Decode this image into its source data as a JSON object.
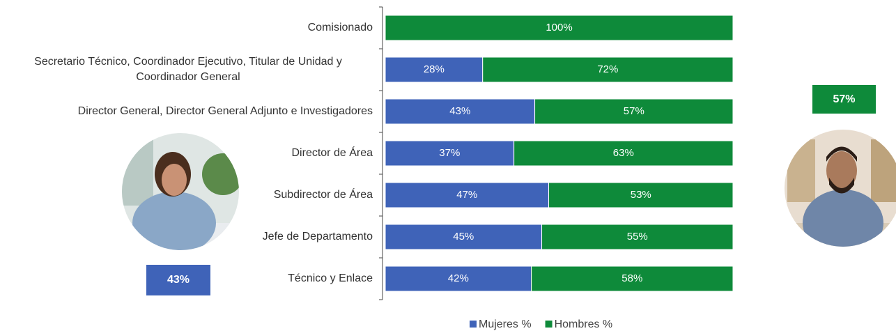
{
  "chart_data": {
    "type": "stacked-bar-horizontal",
    "categories": [
      "Comisionado",
      "Secretario Técnico, Coordinador Ejecutivo, Titular de Unidad y Coordinador General",
      "Director General, Director General Adjunto e Investigadores",
      "Director de Área",
      "Subdirector de Área",
      "Jefe de Departamento",
      "Técnico y Enlace"
    ],
    "series": [
      {
        "name": "Mujeres %",
        "color": "#3f63b8",
        "values": [
          null,
          28,
          43,
          37,
          47,
          45,
          42
        ],
        "value_labels": [
          null,
          "28%",
          "43%",
          "37%",
          "47%",
          "45%",
          "42%"
        ]
      },
      {
        "name": "Hombres %",
        "color": "#0e8a3a",
        "values": [
          100,
          72,
          57,
          63,
          53,
          55,
          58
        ],
        "value_labels": [
          "100%",
          "72%",
          "57%",
          "63%",
          "53%",
          "55%",
          "58%"
        ]
      }
    ],
    "xlim": [
      0,
      100
    ],
    "legend": "bottom",
    "annotations": [
      {
        "text": "43%",
        "color": "#3f63b8"
      },
      {
        "text": "57%",
        "color": "#0e8a3a"
      }
    ]
  }
}
